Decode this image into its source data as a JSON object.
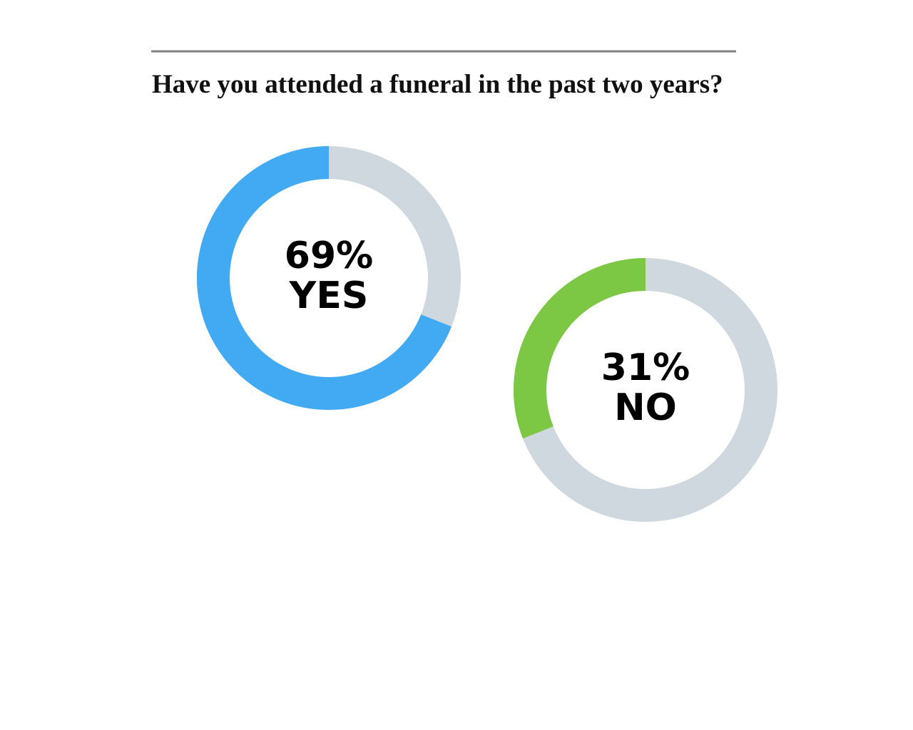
{
  "chart_data": {
    "type": "donut",
    "title": "Have you attended a funeral in the past two years?",
    "categories": [
      "YES",
      "NO"
    ],
    "values": [
      69,
      31
    ],
    "value_labels": [
      "69%",
      "31%"
    ],
    "colors": [
      "#42a9f3",
      "#7cc744"
    ],
    "track_color": "#cfd8df"
  }
}
